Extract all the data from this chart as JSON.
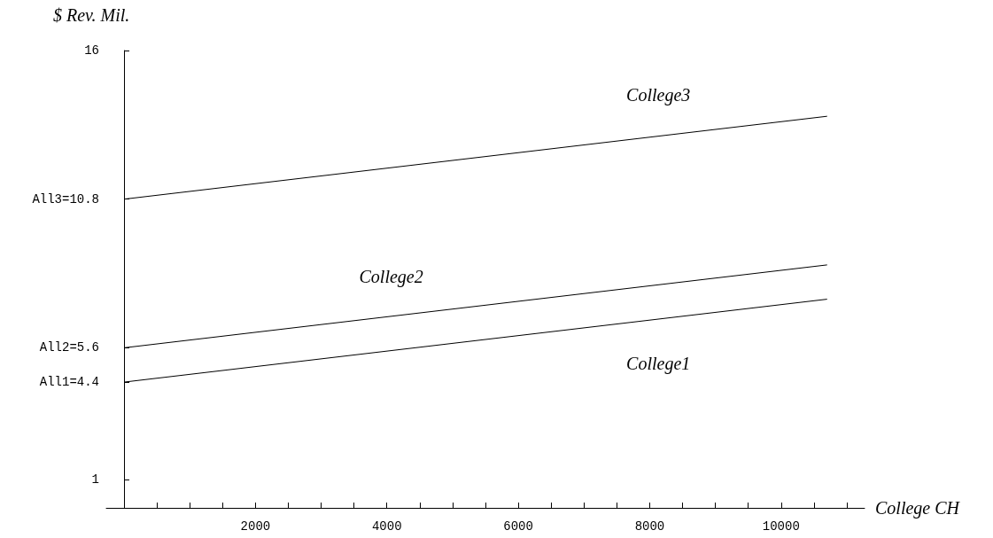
{
  "chart_data": {
    "type": "line",
    "xlabel": "College CH",
    "ylabel": "$ Rev. Mil.",
    "x": [
      0,
      10700
    ],
    "series": [
      {
        "name": "College1",
        "color": "#000000",
        "values": [
          4.4,
          7.3
        ]
      },
      {
        "name": "College2",
        "color": "#000000",
        "values": [
          5.6,
          8.5
        ]
      },
      {
        "name": "College3",
        "color": "#000000",
        "values": [
          10.8,
          13.7
        ]
      }
    ],
    "xlim": [
      -270,
      11270
    ],
    "ylim": [
      0,
      16
    ],
    "xticks": [
      {
        "value": 500,
        "label": null
      },
      {
        "value": 1000,
        "label": null
      },
      {
        "value": 1500,
        "label": null
      },
      2000,
      {
        "value": 2500,
        "label": null
      },
      {
        "value": 3000,
        "label": null
      },
      {
        "value": 3500,
        "label": null
      },
      4000,
      {
        "value": 4500,
        "label": null
      },
      {
        "value": 5000,
        "label": null
      },
      {
        "value": 5500,
        "label": null
      },
      6000,
      {
        "value": 6500,
        "label": null
      },
      {
        "value": 7000,
        "label": null
      },
      {
        "value": 7500,
        "label": null
      },
      8000,
      {
        "value": 8500,
        "label": null
      },
      {
        "value": 9000,
        "label": null
      },
      {
        "value": 9500,
        "label": null
      },
      10000,
      {
        "value": 10500,
        "label": null
      },
      {
        "value": 11000,
        "label": null
      }
    ],
    "yticks": [
      1,
      {
        "value": 4.4,
        "label": "All1=4.4"
      },
      {
        "value": 5.6,
        "label": "All2=5.6"
      },
      {
        "value": 10.8,
        "label": "All3=10.8"
      },
      16
    ],
    "grid": false,
    "marker": "none",
    "line_style": "solid"
  }
}
